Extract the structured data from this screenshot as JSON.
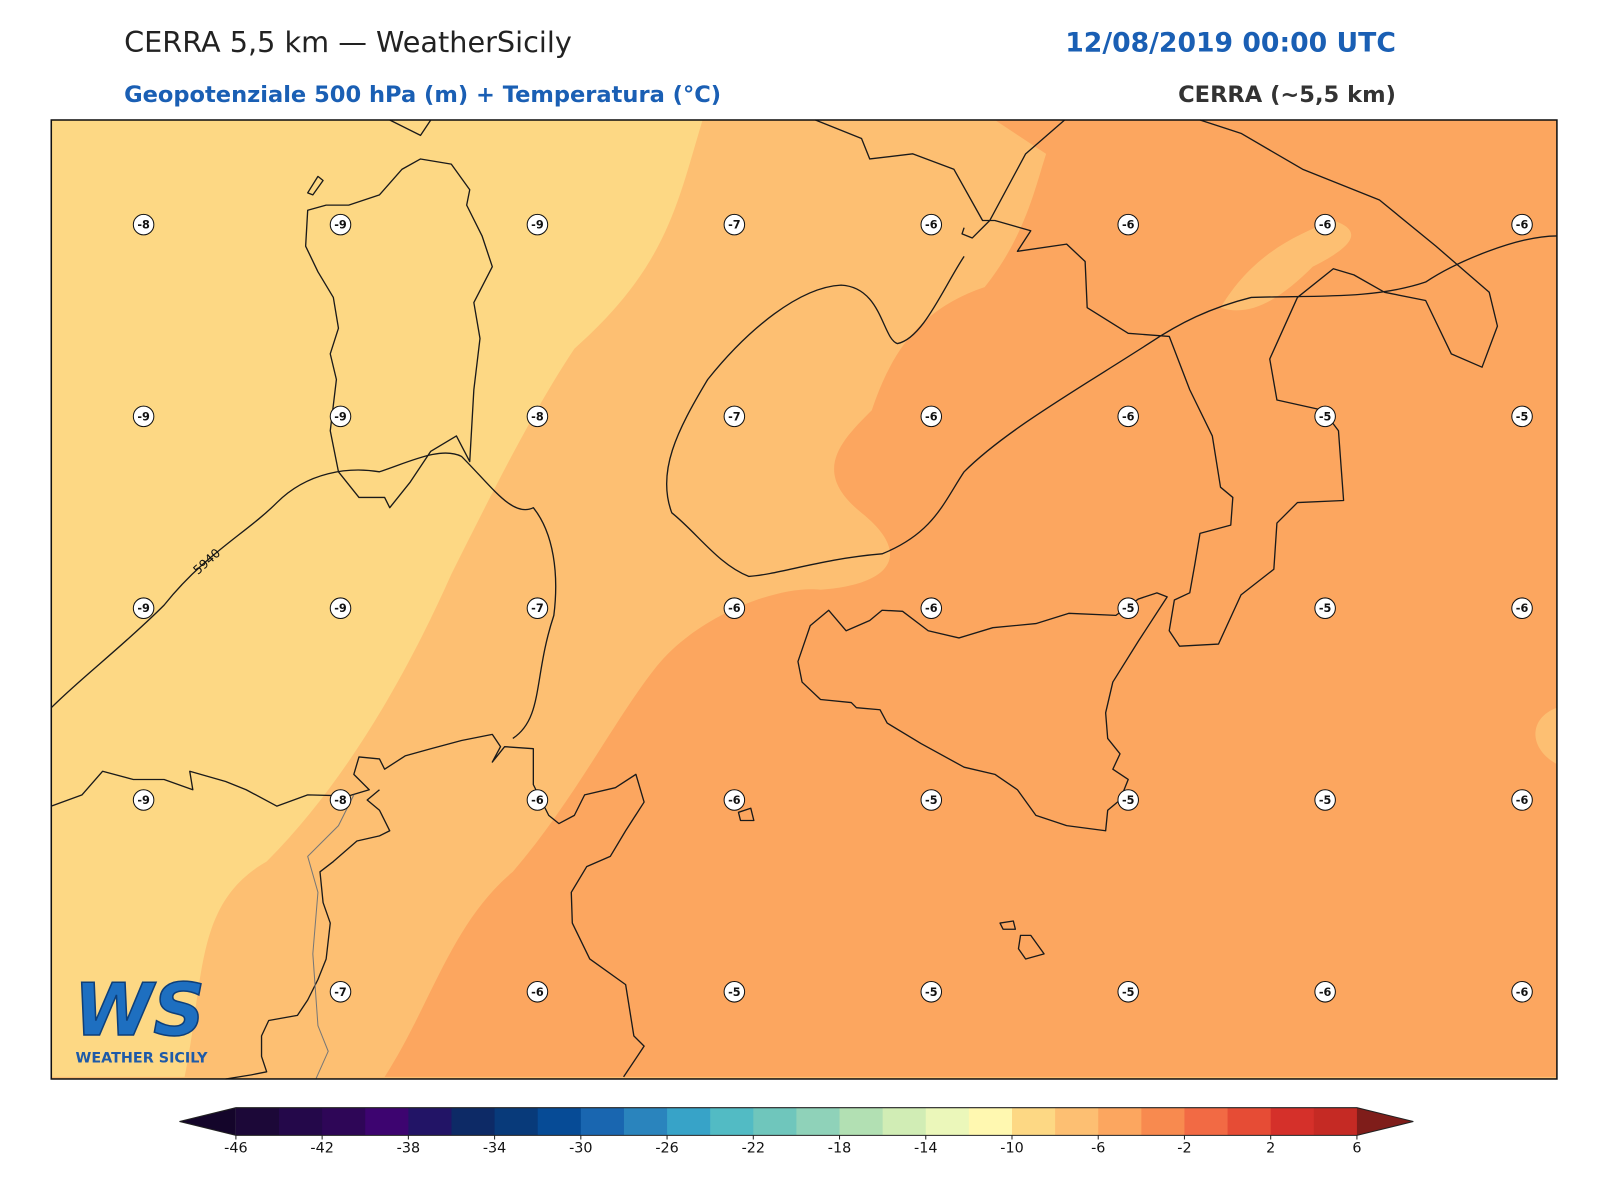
{
  "header": {
    "title": "CERRA 5,5 km — WeatherSicily",
    "datetime": "12/08/2019 00:00 UTC",
    "subtitle": "Geopotenziale 500 hPa (m) + Temperatura (°C)",
    "source": "CERRA (~5,5 km)"
  },
  "map": {
    "contour_label": 5940,
    "grid": {
      "rows": [
        [
          -8,
          -9,
          -9,
          -7,
          -6,
          -6,
          -6,
          -6
        ],
        [
          -9,
          -9,
          -8,
          -7,
          -6,
          -6,
          -5,
          -5
        ],
        [
          -9,
          -9,
          -7,
          -6,
          -6,
          -5,
          -5,
          -6
        ],
        [
          -9,
          -8,
          -6,
          -6,
          -5,
          -5,
          -5,
          -6
        ],
        [
          null,
          -7,
          -6,
          -5,
          -5,
          -5,
          -6,
          -6
        ]
      ]
    }
  },
  "colorbar": {
    "ticks": [
      -46,
      -42,
      -38,
      -34,
      -30,
      -26,
      -22,
      -18,
      -14,
      -10,
      -6,
      -2,
      2,
      6
    ],
    "colors": [
      "#1c0838",
      "#24084a",
      "#2e0657",
      "#3d0470",
      "#221466",
      "#0d2a66",
      "#083a7a",
      "#064b96",
      "#1966b0",
      "#2a84bd",
      "#37a3c8",
      "#52bbc4",
      "#6fc6bc",
      "#8fd2b9",
      "#b2e0b3",
      "#d1edb5",
      "#ebf7ba",
      "#fff8b0",
      "#fdd884",
      "#fdbf72",
      "#fca65f",
      "#f88a4f",
      "#f26a44",
      "#e64c35",
      "#d5302a",
      "#c52a24"
    ]
  },
  "logo": {
    "mark": "WS",
    "name": "WEATHER SICILY"
  }
}
